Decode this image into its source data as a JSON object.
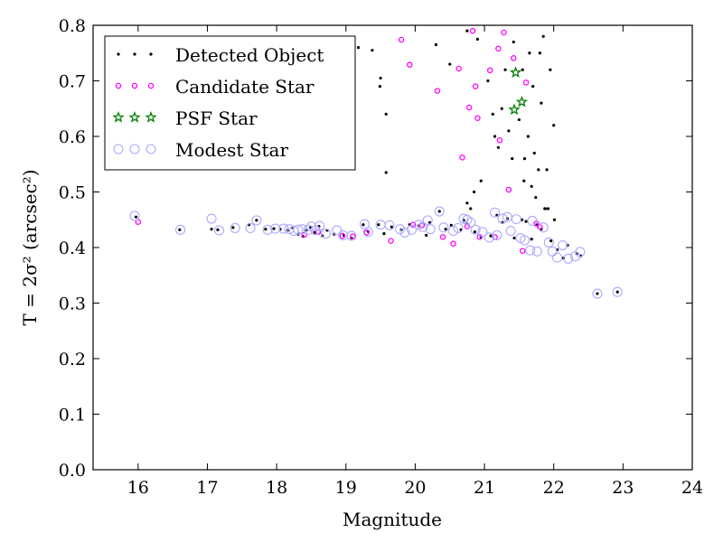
{
  "chart_data": {
    "type": "scatter",
    "xlabel": "Magnitude",
    "ylabel": "T = 2σ² (arcsec²)",
    "xlim": [
      15.35,
      24.0
    ],
    "ylim": [
      0.0,
      0.8
    ],
    "xticks": [
      16,
      17,
      18,
      19,
      20,
      21,
      22,
      23,
      24
    ],
    "yticks": [
      0.0,
      0.1,
      0.2,
      0.3,
      0.4,
      0.5,
      0.6,
      0.7,
      0.8
    ],
    "grid": false,
    "legend_position": "top-left",
    "series": [
      {
        "name": "Detected Object",
        "marker": "dot",
        "color": "#000000",
        "x": [
          15.97,
          16.6,
          17.06,
          17.15,
          17.37,
          17.6,
          17.71,
          17.84,
          17.96,
          18.05,
          18.16,
          18.23,
          18.31,
          18.38,
          18.43,
          18.49,
          18.55,
          18.61,
          18.66,
          18.73,
          18.83,
          18.97,
          19.08,
          19.25,
          19.32,
          19.47,
          19.55,
          19.66,
          19.8,
          19.92,
          20.05,
          20.16,
          20.21,
          20.35,
          20.44,
          20.52,
          20.66,
          20.7,
          20.74,
          20.86,
          20.95,
          21.09,
          21.18,
          21.26,
          21.33,
          21.43,
          21.54,
          21.6,
          21.68,
          21.75,
          21.82,
          21.96,
          22.05,
          22.14,
          22.2,
          22.33,
          22.39,
          22.63,
          22.92,
          19.05,
          19.18,
          19.38,
          19.49,
          19.58,
          19.5,
          19.58,
          20.3,
          20.5,
          20.75,
          20.9,
          21.05,
          21.15,
          21.25,
          21.4,
          21.55,
          21.65,
          21.85,
          20.8,
          20.95,
          21.2,
          21.35,
          21.5,
          21.7,
          21.9,
          20.75,
          20.85,
          21.12,
          21.3,
          21.42,
          21.57,
          21.74,
          21.88,
          21.58,
          21.63,
          21.8,
          21.92,
          22.01,
          21.68,
          21.72,
          22.0,
          21.95,
          21.82,
          21.78,
          21.87
        ],
        "y": [
          0.455,
          0.432,
          0.433,
          0.432,
          0.436,
          0.441,
          0.449,
          0.433,
          0.434,
          0.433,
          0.431,
          0.436,
          0.424,
          0.42,
          0.431,
          0.436,
          0.427,
          0.438,
          0.421,
          0.431,
          0.424,
          0.422,
          0.417,
          0.441,
          0.429,
          0.441,
          0.425,
          0.437,
          0.432,
          0.441,
          0.439,
          0.422,
          0.445,
          0.465,
          0.433,
          0.44,
          0.432,
          0.449,
          0.443,
          0.428,
          0.419,
          0.421,
          0.458,
          0.445,
          0.452,
          0.417,
          0.45,
          0.447,
          0.415,
          0.441,
          0.433,
          0.412,
          0.396,
          0.381,
          0.404,
          0.389,
          0.385,
          0.317,
          0.32,
          0.77,
          0.76,
          0.755,
          0.69,
          0.64,
          0.705,
          0.535,
          0.765,
          0.73,
          0.79,
          0.775,
          0.7,
          0.6,
          0.65,
          0.56,
          0.72,
          0.75,
          0.78,
          0.47,
          0.52,
          0.58,
          0.61,
          0.63,
          0.69,
          0.54,
          0.48,
          0.5,
          0.64,
          0.72,
          0.77,
          0.52,
          0.49,
          0.47,
          0.56,
          0.6,
          0.75,
          0.47,
          0.45,
          0.51,
          0.57,
          0.62,
          0.72,
          0.66,
          0.54,
          0.47
        ]
      },
      {
        "name": "Candidate Star",
        "marker": "circle",
        "color": "#ff00ff",
        "x": [
          16.0,
          18.4,
          18.6,
          18.95,
          19.3,
          19.65,
          19.97,
          20.1,
          20.4,
          20.55,
          20.75,
          20.93,
          21.15,
          21.55,
          21.8,
          19.8,
          19.92,
          20.32,
          20.68,
          20.83,
          20.87,
          21.08,
          21.2,
          21.28,
          21.42,
          21.6,
          20.78,
          20.9,
          21.22,
          21.35,
          21.75,
          19.1,
          20.63
        ],
        "y": [
          0.446,
          0.423,
          0.428,
          0.421,
          0.427,
          0.412,
          0.441,
          0.44,
          0.419,
          0.407,
          0.438,
          0.419,
          0.419,
          0.394,
          0.437,
          0.774,
          0.729,
          0.682,
          0.562,
          0.79,
          0.69,
          0.719,
          0.758,
          0.787,
          0.741,
          0.697,
          0.652,
          0.633,
          0.593,
          0.504,
          0.443,
          0.42,
          0.722
        ]
      },
      {
        "name": "PSF Star",
        "marker": "star",
        "color": "#008000",
        "x": [
          21.45,
          21.54,
          21.43
        ],
        "y": [
          0.715,
          0.662,
          0.648
        ]
      },
      {
        "name": "Modest Star",
        "marker": "open-circle",
        "color": "#aaaaff",
        "x": [
          15.95,
          16.61,
          17.06,
          17.17,
          17.4,
          17.62,
          17.71,
          17.87,
          17.98,
          18.1,
          18.18,
          18.25,
          18.31,
          18.37,
          18.46,
          18.5,
          18.56,
          18.62,
          18.71,
          18.87,
          18.96,
          19.08,
          19.27,
          19.32,
          19.5,
          19.63,
          19.78,
          19.85,
          19.95,
          20.05,
          20.11,
          20.18,
          20.22,
          20.35,
          20.41,
          20.55,
          20.62,
          20.7,
          20.75,
          20.8,
          20.87,
          20.97,
          21.07,
          21.15,
          21.18,
          21.26,
          21.33,
          21.38,
          21.46,
          21.52,
          21.58,
          21.66,
          21.69,
          21.76,
          21.85,
          21.93,
          21.98,
          22.05,
          22.13,
          22.21,
          22.31,
          22.38,
          22.63,
          22.92
        ],
        "y": [
          0.457,
          0.432,
          0.452,
          0.431,
          0.435,
          0.435,
          0.449,
          0.432,
          0.434,
          0.434,
          0.433,
          0.43,
          0.432,
          0.433,
          0.432,
          0.438,
          0.431,
          0.439,
          0.425,
          0.431,
          0.422,
          0.421,
          0.442,
          0.428,
          0.441,
          0.44,
          0.433,
          0.427,
          0.432,
          0.441,
          0.437,
          0.449,
          0.433,
          0.465,
          0.436,
          0.43,
          0.435,
          0.452,
          0.45,
          0.445,
          0.432,
          0.428,
          0.418,
          0.463,
          0.422,
          0.452,
          0.455,
          0.43,
          0.451,
          0.417,
          0.413,
          0.395,
          0.448,
          0.393,
          0.436,
          0.409,
          0.393,
          0.382,
          0.404,
          0.38,
          0.384,
          0.392,
          0.317,
          0.32
        ]
      }
    ]
  }
}
